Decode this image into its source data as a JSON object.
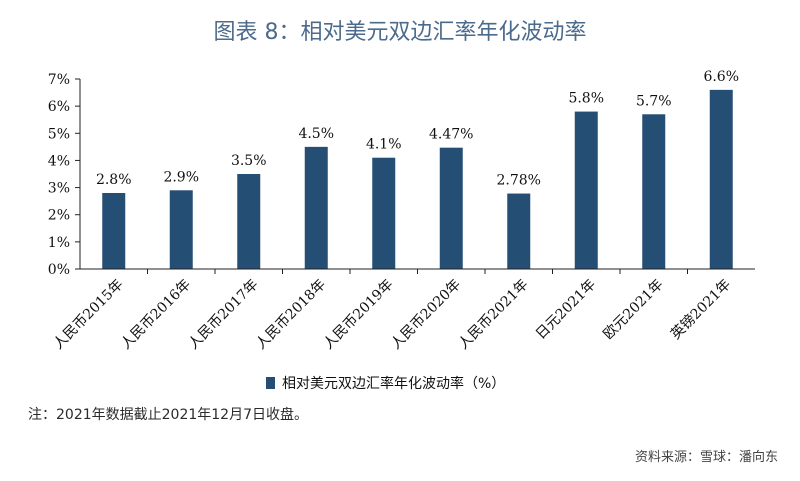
{
  "header": {
    "title": "图表 8：相对美元双边汇率年化波动率"
  },
  "chart_data": {
    "type": "bar",
    "title": "图表 8：相对美元双边汇率年化波动率",
    "categories": [
      "人民币2015年",
      "人民币2016年",
      "人民币2017年",
      "人民币2018年",
      "人民币2019年",
      "人民币2020年",
      "人民币2021年",
      "日元2021年",
      "欧元2021年",
      "英镑2021年"
    ],
    "series": [
      {
        "name": "相对美元双边汇率年化波动率（%）",
        "values": [
          2.8,
          2.9,
          3.5,
          4.5,
          4.1,
          4.47,
          2.78,
          5.8,
          5.7,
          6.6
        ]
      }
    ],
    "data_labels": [
      "2.8%",
      "2.9%",
      "3.5%",
      "4.5%",
      "4.1%",
      "4.47%",
      "2.78%",
      "5.8%",
      "5.7%",
      "6.6%"
    ],
    "y_ticks": [
      "0%",
      "1%",
      "2%",
      "3%",
      "4%",
      "5%",
      "6%",
      "7%"
    ],
    "ylim": [
      0,
      7
    ],
    "xlabel": "",
    "ylabel": "",
    "grid": false,
    "legend_position": "bottom",
    "bar_color": "#254e74"
  },
  "footer": {
    "note": "注：2021年数据截止2021年12月7日收盘。",
    "source": "资料来源：雪球：潘向东"
  }
}
